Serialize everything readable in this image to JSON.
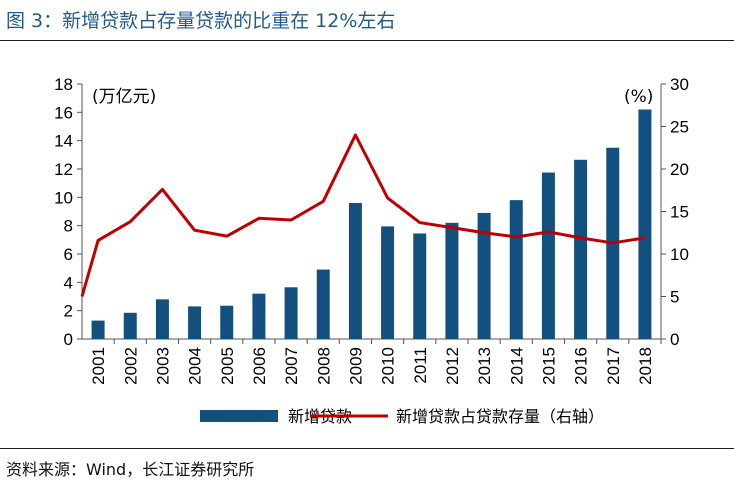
{
  "title": "图 3：新增贷款占存量贷款的比重在 12%左右",
  "source": "资料来源：Wind，长江证券研究所",
  "colors": {
    "bar": "#14507d",
    "line": "#c00000",
    "title": "#1f5a8c"
  },
  "chart_data": {
    "type": "bar",
    "categories": [
      "2001",
      "2002",
      "2003",
      "2004",
      "2005",
      "2006",
      "2007",
      "2008",
      "2009",
      "2010",
      "2011",
      "2012",
      "2013",
      "2014",
      "2015",
      "2016",
      "2017",
      "2018"
    ],
    "ylabel_left": "(万亿元)",
    "ylabel_right": "(%)",
    "ylim_left": [
      0,
      18
    ],
    "ylim_right": [
      0,
      30
    ],
    "yticks_left": [
      "0",
      "2",
      "4",
      "6",
      "8",
      "10",
      "12",
      "14",
      "16",
      "18"
    ],
    "yticks_right": [
      "0",
      "5",
      "10",
      "15",
      "20",
      "25",
      "30"
    ],
    "legend_position": "bottom",
    "grid": false,
    "series": [
      {
        "name": "新增贷款",
        "type": "bar",
        "axis": "left",
        "values": [
          1.3,
          1.85,
          2.8,
          2.3,
          2.35,
          3.2,
          3.65,
          4.9,
          9.6,
          7.95,
          7.45,
          8.2,
          8.9,
          9.8,
          11.75,
          12.65,
          13.5,
          16.2
        ]
      },
      {
        "name": "新增贷款占贷款存量（右轴）",
        "type": "line",
        "axis": "right",
        "start_value": 5.0,
        "values": [
          11.6,
          13.8,
          17.6,
          12.8,
          12.1,
          14.2,
          14.0,
          16.2,
          24.0,
          16.6,
          13.7,
          13.1,
          12.5,
          12.0,
          12.6,
          11.9,
          11.3,
          11.9
        ]
      }
    ]
  }
}
